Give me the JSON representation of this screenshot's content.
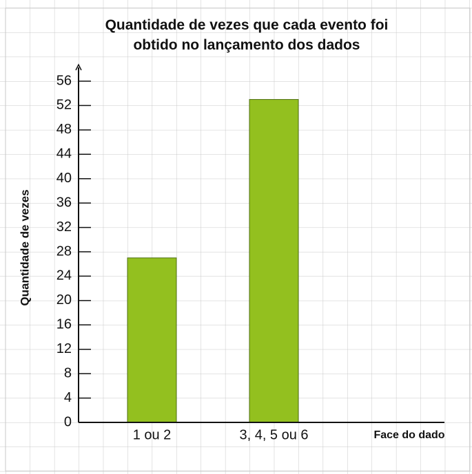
{
  "chart_data": {
    "type": "bar",
    "title": "Quantidade de vezes que cada evento foi obtido no lançamento dos dados",
    "x_label": "Face do dado",
    "y_label": "Quantidade de vezes",
    "categories": [
      "1 ou 2",
      "3, 4, 5 ou 6"
    ],
    "values": [
      27,
      53
    ],
    "color": "#93c01f",
    "ylim": [
      0,
      56
    ],
    "yticks": [
      0,
      4,
      8,
      12,
      16,
      20,
      24,
      28,
      32,
      36,
      40,
      44,
      48,
      52,
      56
    ]
  }
}
